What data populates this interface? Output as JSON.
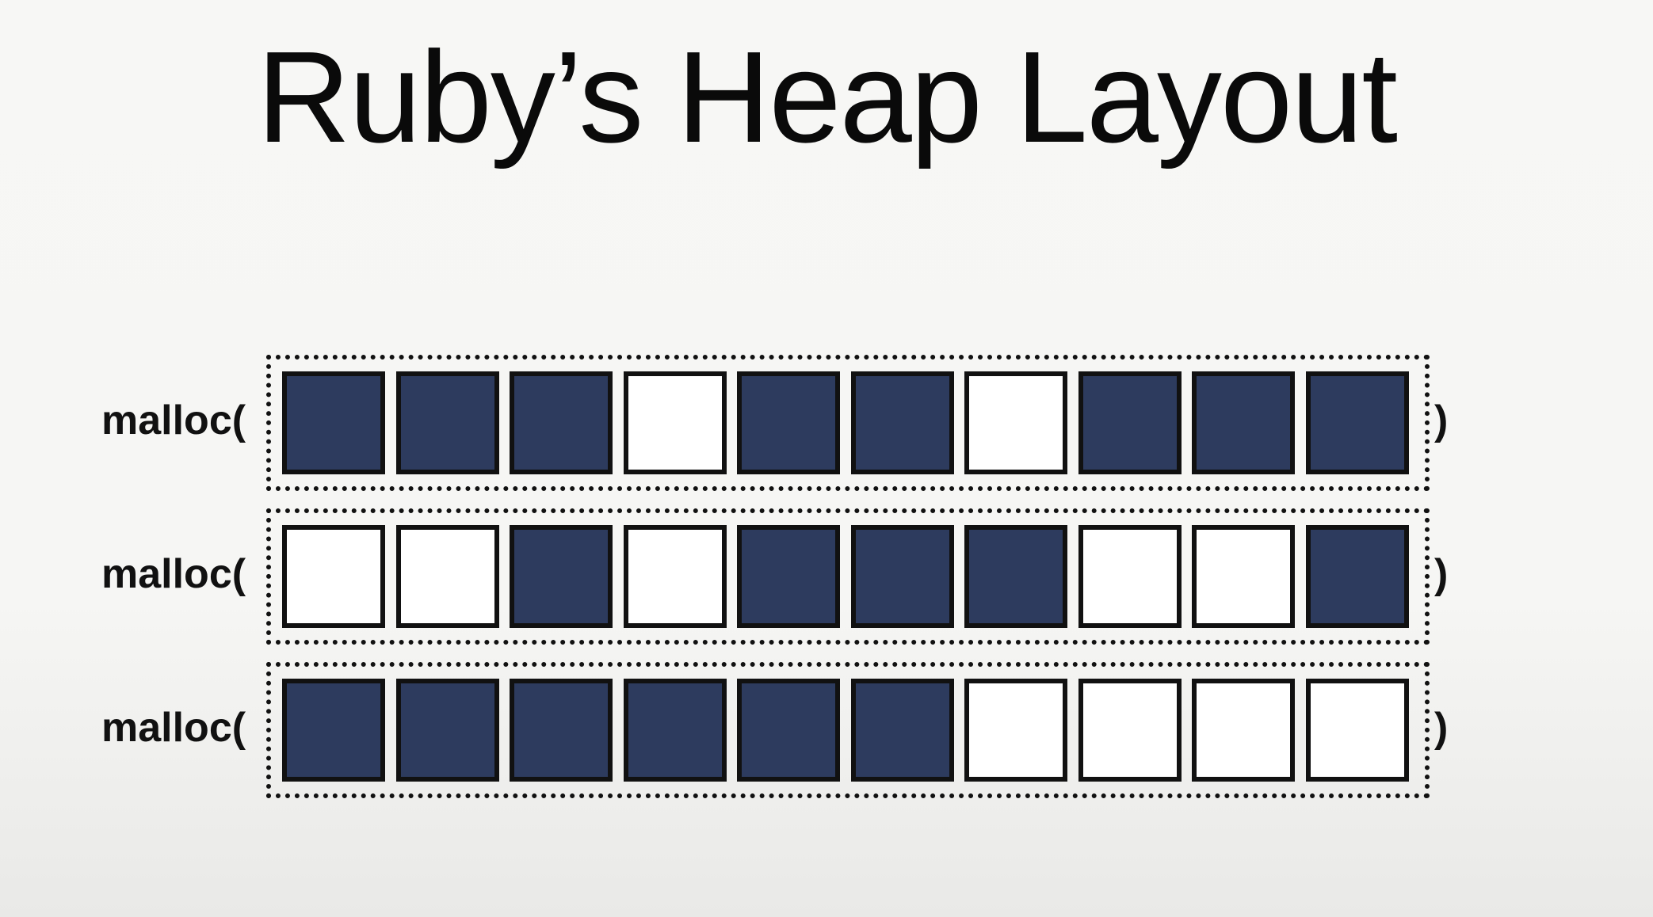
{
  "title": "Ruby’s Heap Layout",
  "colors": {
    "used_slot": "#2d3b5e",
    "free_slot": "#ffffff",
    "outline": "#111111"
  },
  "rows": [
    {
      "label": "malloc(",
      "close": ")",
      "slots": [
        true,
        true,
        true,
        false,
        true,
        true,
        false,
        true,
        true,
        true
      ]
    },
    {
      "label": "malloc(",
      "close": ")",
      "slots": [
        false,
        false,
        true,
        false,
        true,
        true,
        true,
        false,
        false,
        true
      ]
    },
    {
      "label": "malloc(",
      "close": ")",
      "slots": [
        true,
        true,
        true,
        true,
        true,
        true,
        false,
        false,
        false,
        false
      ]
    }
  ]
}
